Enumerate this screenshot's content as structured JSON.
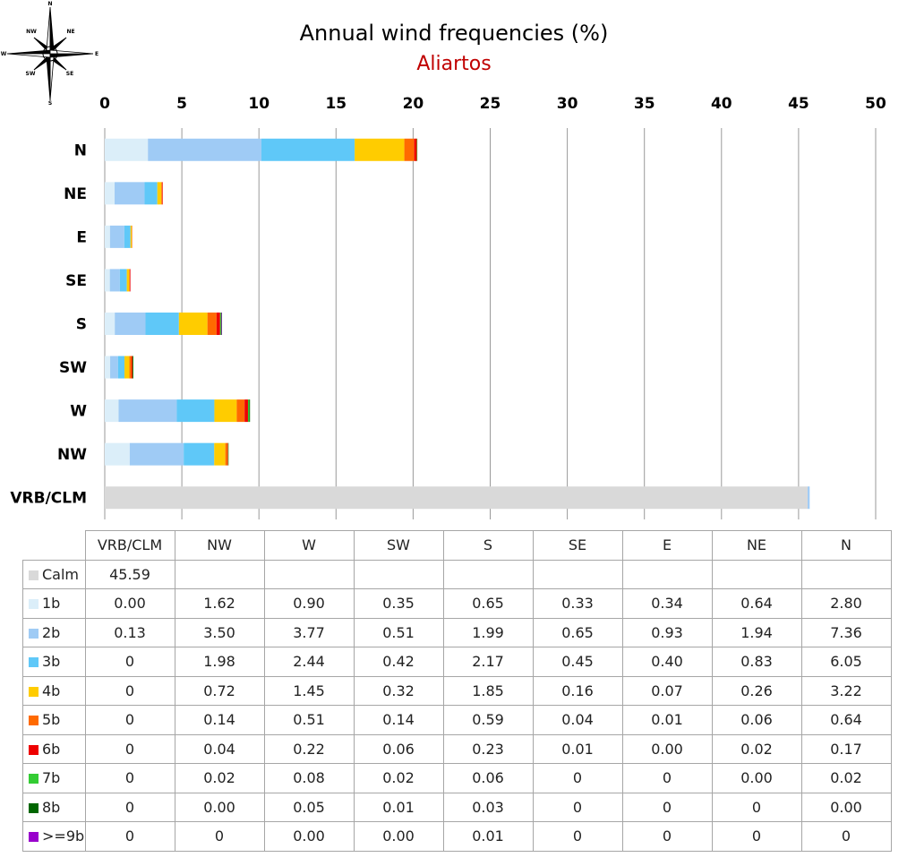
{
  "chart_data": {
    "type": "bar",
    "orientation": "horizontal",
    "stacked": true,
    "title": "Annual wind frequencies (%)",
    "subtitle": "Aliartos",
    "categories": [
      "N",
      "NE",
      "E",
      "SE",
      "S",
      "SW",
      "W",
      "NW",
      "VRB/CLM"
    ],
    "xlim": [
      0,
      50
    ],
    "x_ticks": [
      0,
      5,
      10,
      15,
      20,
      25,
      30,
      35,
      40,
      45,
      50
    ],
    "grid": "vertical",
    "axis_position": "top",
    "colors": {
      "calm": "#d9d9d9",
      "b1": "#dbeef9",
      "b2": "#9fcbf5",
      "b3": "#5fc8f8",
      "b4": "#ffcc00",
      "b5": "#ff6a00",
      "b6": "#ee0000",
      "b7": "#33cc33",
      "b8": "#006600",
      "b9": "#9900cc",
      "title": "#000000",
      "subtitle": "#c00000"
    },
    "series": [
      {
        "name": "Calm",
        "key": "calm",
        "values": [
          0,
          0,
          0,
          0,
          0,
          0,
          0,
          0,
          45.59
        ]
      },
      {
        "name": "1b",
        "key": "b1",
        "values": [
          2.8,
          0.64,
          0.34,
          0.33,
          0.65,
          0.35,
          0.9,
          1.62,
          0.0
        ]
      },
      {
        "name": "2b",
        "key": "b2",
        "values": [
          7.36,
          1.94,
          0.93,
          0.65,
          1.99,
          0.51,
          3.77,
          3.5,
          0.13
        ]
      },
      {
        "name": "3b",
        "key": "b3",
        "values": [
          6.05,
          0.83,
          0.4,
          0.45,
          2.17,
          0.42,
          2.44,
          1.98,
          0
        ]
      },
      {
        "name": "4b",
        "key": "b4",
        "values": [
          3.22,
          0.26,
          0.07,
          0.16,
          1.85,
          0.32,
          1.45,
          0.72,
          0
        ]
      },
      {
        "name": "5b",
        "key": "b5",
        "values": [
          0.64,
          0.06,
          0.01,
          0.04,
          0.59,
          0.14,
          0.51,
          0.14,
          0
        ]
      },
      {
        "name": "6b",
        "key": "b6",
        "values": [
          0.17,
          0.02,
          0.0,
          0.01,
          0.23,
          0.06,
          0.22,
          0.04,
          0
        ]
      },
      {
        "name": "7b",
        "key": "b7",
        "values": [
          0.02,
          0.0,
          0,
          0,
          0.06,
          0.02,
          0.08,
          0.02,
          0
        ]
      },
      {
        "name": "8b",
        "key": "b8",
        "values": [
          0.0,
          0,
          0,
          0,
          0.03,
          0.01,
          0.05,
          0.0,
          0
        ]
      },
      {
        "name": ">=9b",
        "key": "b9",
        "values": [
          0,
          0,
          0,
          0,
          0.01,
          0.0,
          0.0,
          0,
          0
        ]
      }
    ],
    "table": {
      "columns": [
        "VRB/CLM",
        "NW",
        "W",
        "SW",
        "S",
        "SE",
        "E",
        "NE",
        "N"
      ],
      "rows": [
        {
          "label": "Calm",
          "key": "calm",
          "cells": [
            "45.59",
            "",
            "",
            "",
            "",
            "",
            "",
            "",
            ""
          ]
        },
        {
          "label": "1b",
          "key": "b1",
          "cells": [
            "0.00",
            "1.62",
            "0.90",
            "0.35",
            "0.65",
            "0.33",
            "0.34",
            "0.64",
            "2.80"
          ]
        },
        {
          "label": "2b",
          "key": "b2",
          "cells": [
            "0.13",
            "3.50",
            "3.77",
            "0.51",
            "1.99",
            "0.65",
            "0.93",
            "1.94",
            "7.36"
          ]
        },
        {
          "label": "3b",
          "key": "b3",
          "cells": [
            "0",
            "1.98",
            "2.44",
            "0.42",
            "2.17",
            "0.45",
            "0.40",
            "0.83",
            "6.05"
          ]
        },
        {
          "label": "4b",
          "key": "b4",
          "cells": [
            "0",
            "0.72",
            "1.45",
            "0.32",
            "1.85",
            "0.16",
            "0.07",
            "0.26",
            "3.22"
          ]
        },
        {
          "label": "5b",
          "key": "b5",
          "cells": [
            "0",
            "0.14",
            "0.51",
            "0.14",
            "0.59",
            "0.04",
            "0.01",
            "0.06",
            "0.64"
          ]
        },
        {
          "label": "6b",
          "key": "b6",
          "cells": [
            "0",
            "0.04",
            "0.22",
            "0.06",
            "0.23",
            "0.01",
            "0.00",
            "0.02",
            "0.17"
          ]
        },
        {
          "label": "7b",
          "key": "b7",
          "cells": [
            "0",
            "0.02",
            "0.08",
            "0.02",
            "0.06",
            "0",
            "0",
            "0.00",
            "0.02"
          ]
        },
        {
          "label": "8b",
          "key": "b8",
          "cells": [
            "0",
            "0.00",
            "0.05",
            "0.01",
            "0.03",
            "0",
            "0",
            "0",
            "0.00"
          ]
        },
        {
          "label": ">=9b",
          "key": "b9",
          "cells": [
            "0",
            "0",
            "0.00",
            "0.00",
            "0.01",
            "0",
            "0",
            "0",
            "0"
          ]
        }
      ]
    }
  },
  "compass": {
    "icon": "compass-rose-icon",
    "labels": {
      "n": "N",
      "ne": "NE",
      "e": "E",
      "se": "SE",
      "s": "S",
      "sw": "SW",
      "w": "W",
      "nw": "NW"
    }
  }
}
